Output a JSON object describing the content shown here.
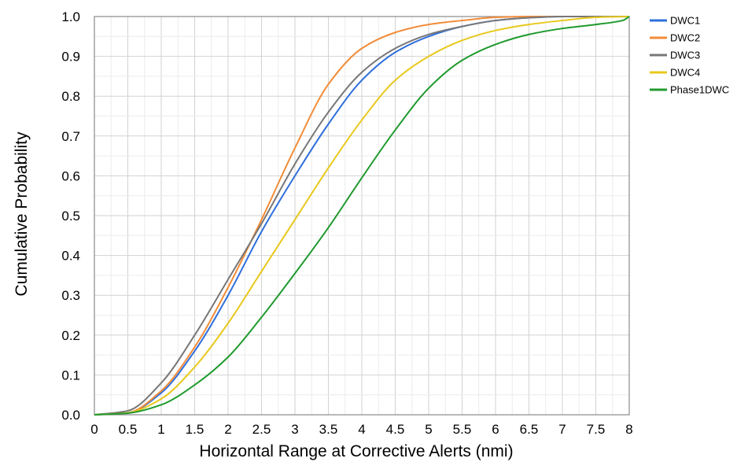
{
  "chart_data": {
    "type": "line",
    "title": "",
    "xlabel": "Horizontal Range at Corrective Alerts (nmi)",
    "ylabel": "Cumulative Probability",
    "xlim": [
      0,
      8
    ],
    "ylim": [
      0,
      1
    ],
    "x_ticks": [
      "0",
      "0.5",
      "1",
      "1.5",
      "2",
      "2.5",
      "3",
      "3.5",
      "4",
      "4.5",
      "5",
      "5.5",
      "6",
      "6.5",
      "7",
      "7.5",
      "8"
    ],
    "y_ticks": [
      "0.0",
      "0.1",
      "0.2",
      "0.3",
      "0.4",
      "0.5",
      "0.6",
      "0.7",
      "0.8",
      "0.9",
      "1.0"
    ],
    "grid": true,
    "legend_position": "top-right outside",
    "series": [
      {
        "name": "DWC1",
        "color": "#2f6fdc",
        "x": [
          0,
          0.5,
          1,
          1.5,
          2,
          2.5,
          3,
          3.5,
          4,
          4.5,
          5,
          5.5,
          6,
          6.5,
          7,
          7.5,
          8
        ],
        "y": [
          0,
          0.005,
          0.055,
          0.16,
          0.3,
          0.46,
          0.6,
          0.73,
          0.84,
          0.91,
          0.95,
          0.975,
          0.99,
          0.997,
          1.0,
          1.0,
          1.0
        ]
      },
      {
        "name": "DWC2",
        "color": "#f28c38",
        "x": [
          0,
          0.5,
          1,
          1.5,
          2,
          2.5,
          3,
          3.5,
          4,
          4.5,
          5,
          5.5,
          6,
          6.5,
          7,
          7.5,
          8
        ],
        "y": [
          0,
          0.005,
          0.06,
          0.17,
          0.32,
          0.49,
          0.67,
          0.83,
          0.92,
          0.96,
          0.98,
          0.99,
          0.998,
          1.0,
          1.0,
          1.0,
          1.0
        ]
      },
      {
        "name": "DWC3",
        "color": "#777777",
        "x": [
          0,
          0.5,
          1,
          1.5,
          2,
          2.5,
          3,
          3.5,
          4,
          4.5,
          5,
          5.5,
          6,
          6.5,
          7,
          7.5,
          8
        ],
        "y": [
          0,
          0.01,
          0.08,
          0.2,
          0.34,
          0.48,
          0.63,
          0.76,
          0.86,
          0.92,
          0.955,
          0.975,
          0.99,
          0.997,
          1.0,
          1.0,
          1.0
        ]
      },
      {
        "name": "DWC4",
        "color": "#e8c81c",
        "x": [
          0,
          0.5,
          1,
          1.5,
          2,
          2.5,
          3,
          3.5,
          4,
          4.5,
          5,
          5.5,
          6,
          6.5,
          7,
          7.5,
          8
        ],
        "y": [
          0,
          0.005,
          0.04,
          0.12,
          0.23,
          0.36,
          0.49,
          0.62,
          0.74,
          0.84,
          0.9,
          0.94,
          0.965,
          0.98,
          0.99,
          0.998,
          1.0
        ]
      },
      {
        "name": "Phase1DWC",
        "color": "#1f9a2e",
        "x": [
          0,
          0.5,
          1,
          1.5,
          2,
          2.5,
          3,
          3.5,
          4,
          4.5,
          5,
          5.5,
          6,
          6.5,
          7,
          7.5,
          7.9,
          8
        ],
        "y": [
          0,
          0.004,
          0.025,
          0.075,
          0.145,
          0.245,
          0.355,
          0.47,
          0.595,
          0.715,
          0.82,
          0.89,
          0.93,
          0.955,
          0.97,
          0.98,
          0.99,
          1.0
        ]
      }
    ]
  }
}
